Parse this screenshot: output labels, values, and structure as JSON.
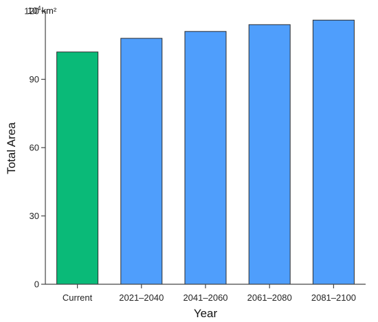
{
  "chart_data": {
    "type": "bar",
    "categories": [
      "Current",
      "2021–2040",
      "2041–2060",
      "2061–2080",
      "2081–2100"
    ],
    "values": [
      102,
      108,
      111,
      114,
      116
    ],
    "bar_colors": [
      "#0aba78",
      "#4f9efc",
      "#4f9efc",
      "#4f9efc",
      "#4f9efc"
    ],
    "bar_stroke": "#2b2b2b",
    "ylim": [
      0,
      120
    ],
    "yticks": [
      0,
      30,
      60,
      90,
      120
    ],
    "xlabel": "Year",
    "ylabel": "Total Area",
    "unit": {
      "base": "10",
      "exponent": "4",
      "suffix": "km²"
    },
    "grid": false
  }
}
